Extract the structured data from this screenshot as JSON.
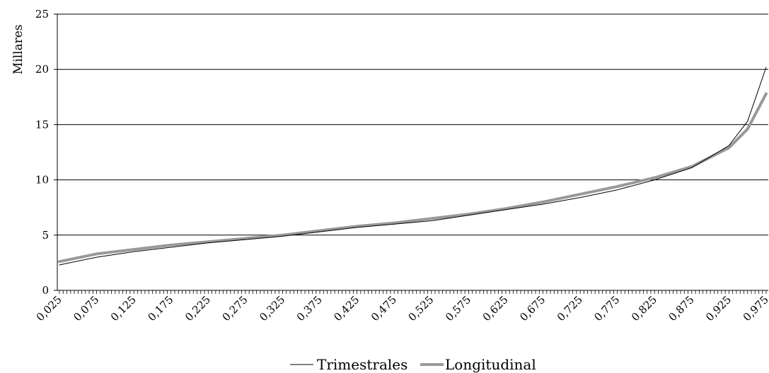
{
  "chart_data": {
    "type": "line",
    "title": "",
    "xlabel": "",
    "ylabel": "Millares",
    "ylim": [
      0,
      25
    ],
    "yticks": [
      0,
      5,
      10,
      15,
      20,
      25
    ],
    "xlim": [
      0.025,
      0.975
    ],
    "xtick_labels": [
      "0,025",
      "0,075",
      "0,125",
      "0,175",
      "0,225",
      "0,275",
      "0,325",
      "0,375",
      "0,425",
      "0,475",
      "0,525",
      "0,575",
      "0,625",
      "0,675",
      "0,725",
      "0,775",
      "0,825",
      "0,875",
      "0,925",
      "0,975"
    ],
    "grid": "horizontal",
    "legend_position": "bottom",
    "x": [
      0.025,
      0.075,
      0.125,
      0.175,
      0.225,
      0.275,
      0.325,
      0.375,
      0.425,
      0.475,
      0.525,
      0.575,
      0.625,
      0.675,
      0.725,
      0.775,
      0.825,
      0.875,
      0.925,
      0.95,
      0.975
    ],
    "series": [
      {
        "name": "Trimestrales",
        "color": "#000000",
        "line_width": 1,
        "values": [
          2.3,
          3.0,
          3.5,
          3.9,
          4.3,
          4.6,
          4.9,
          5.3,
          5.7,
          6.0,
          6.3,
          6.8,
          7.3,
          7.8,
          8.4,
          9.1,
          10.0,
          11.1,
          13.1,
          15.3,
          20.2
        ]
      },
      {
        "name": "Longitudinal",
        "color": "#999999",
        "line_width": 4,
        "values": [
          2.6,
          3.3,
          3.7,
          4.1,
          4.4,
          4.7,
          5.0,
          5.4,
          5.8,
          6.1,
          6.5,
          6.9,
          7.4,
          8.0,
          8.7,
          9.4,
          10.2,
          11.2,
          12.9,
          14.6,
          17.8
        ]
      }
    ]
  }
}
